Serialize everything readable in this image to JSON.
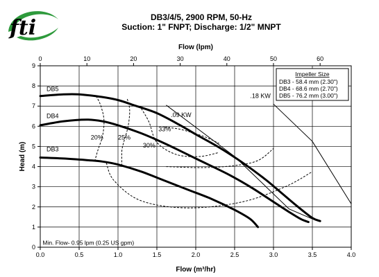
{
  "logo": {
    "text": "fti",
    "icon": "fti-globe-logo",
    "color": "#1e4fa0",
    "accent": "#2e9a3c"
  },
  "chart_data": {
    "type": "line",
    "title": "DB3/4/5, 2900 RPM, 50-Hz",
    "subtitle": "Suction: 1\" FNPT; Discharge: 1/2\" MNPT",
    "xlabel": "Flow (m³/hr)",
    "x2label": "Flow (lpm)",
    "ylabel": "Head (m)",
    "xlim": [
      0,
      4
    ],
    "ylim": [
      0,
      9
    ],
    "x2lim": [
      0,
      66.67
    ],
    "xticks": [
      "0.0",
      "0.5",
      "1.0",
      "1.5",
      "2.0",
      "2.5",
      "3.0",
      "3.5",
      "4.0"
    ],
    "x2ticks": [
      "0",
      "10",
      "20",
      "30",
      "40",
      "50",
      "60"
    ],
    "yticks": [
      "0",
      "1",
      "2",
      "3",
      "4",
      "5",
      "6",
      "7",
      "8",
      "9"
    ],
    "grid": true,
    "legend": {
      "title": "Impeller Size",
      "placement": "top-right",
      "entries": [
        "DB3 - 58.4 mm (2.30\")",
        "DB4 - 68.6 mm (2.70\")",
        "DB5 - 76.2 mm (3.00\")"
      ]
    },
    "series": [
      {
        "name": "DB5",
        "style": "solid-heavy",
        "points": [
          [
            0,
            7.5
          ],
          [
            0.3,
            7.58
          ],
          [
            0.5,
            7.58
          ],
          [
            0.8,
            7.45
          ],
          [
            1.0,
            7.3
          ],
          [
            1.2,
            7.05
          ],
          [
            1.5,
            6.65
          ],
          [
            1.8,
            6.05
          ],
          [
            2.0,
            5.6
          ],
          [
            2.3,
            4.95
          ],
          [
            2.6,
            4.2
          ],
          [
            2.9,
            3.35
          ],
          [
            3.1,
            2.7
          ],
          [
            3.3,
            2.05
          ],
          [
            3.5,
            1.45
          ],
          [
            3.6,
            1.3
          ]
        ]
      },
      {
        "name": "DB4",
        "style": "solid-heavy",
        "points": [
          [
            0,
            6.05
          ],
          [
            0.3,
            6.25
          ],
          [
            0.6,
            6.33
          ],
          [
            0.8,
            6.25
          ],
          [
            1.0,
            6.05
          ],
          [
            1.3,
            5.65
          ],
          [
            1.6,
            5.15
          ],
          [
            2.0,
            4.4
          ],
          [
            2.4,
            3.65
          ],
          [
            2.7,
            3.0
          ],
          [
            3.0,
            2.25
          ],
          [
            3.2,
            1.75
          ],
          [
            3.35,
            1.4
          ],
          [
            3.45,
            1.25
          ]
        ]
      },
      {
        "name": "DB3",
        "style": "solid-heavy",
        "points": [
          [
            0,
            4.45
          ],
          [
            0.3,
            4.4
          ],
          [
            0.6,
            4.32
          ],
          [
            0.8,
            4.25
          ],
          [
            1.0,
            4.1
          ],
          [
            1.3,
            3.75
          ],
          [
            1.6,
            3.3
          ],
          [
            1.9,
            2.85
          ],
          [
            2.2,
            2.4
          ],
          [
            2.5,
            1.85
          ],
          [
            2.7,
            1.4
          ],
          [
            2.8,
            1.0
          ]
        ]
      }
    ],
    "efficiency": [
      {
        "label": "20%",
        "label_at": [
          0.65,
          5.35
        ],
        "points": [
          [
            0.72,
            7.5
          ],
          [
            0.78,
            7.0
          ],
          [
            0.82,
            6.3
          ],
          [
            0.8,
            5.5
          ],
          [
            0.74,
            4.8
          ],
          [
            0.7,
            4.25
          ]
        ]
      },
      {
        "label": "25%",
        "label_at": [
          1.0,
          5.35
        ],
        "points": [
          [
            1.12,
            7.35
          ],
          [
            1.15,
            6.8
          ],
          [
            1.13,
            6.0
          ],
          [
            1.08,
            5.3
          ],
          [
            1.05,
            4.8
          ],
          [
            1.05,
            4.05
          ]
        ]
      },
      {
        "label": "30%",
        "label_at": [
          1.32,
          4.95
        ],
        "points": [
          [
            1.3,
            6.88
          ],
          [
            1.4,
            6.2
          ],
          [
            1.5,
            5.2
          ],
          [
            1.75,
            4.6
          ],
          [
            2.05,
            4.5
          ],
          [
            2.3,
            4.7
          ]
        ]
      },
      {
        "label": "33%",
        "label_at": [
          1.52,
          5.75
        ],
        "points": [
          [
            1.6,
            5.95
          ],
          [
            1.8,
            5.85
          ],
          [
            2.1,
            5.5
          ],
          [
            2.3,
            5.15
          ]
        ]
      },
      {
        "label": "",
        "label_at": null,
        "points": [
          [
            1.62,
            4.0
          ],
          [
            2.1,
            3.95
          ],
          [
            2.5,
            4.05
          ],
          [
            2.8,
            4.3
          ],
          [
            3.0,
            4.9
          ]
        ]
      },
      {
        "label": "",
        "label_at": null,
        "points": [
          [
            0.85,
            4.18
          ],
          [
            0.95,
            3.3
          ],
          [
            1.3,
            2.3
          ],
          [
            1.9,
            1.95
          ],
          [
            2.6,
            2.25
          ],
          [
            3.15,
            3.0
          ],
          [
            3.5,
            3.75
          ]
        ]
      }
    ],
    "power_lines": [
      {
        "label": ".09 KW",
        "label_at": [
          1.68,
          6.45
        ],
        "points": [
          [
            1.62,
            7.05
          ],
          [
            2.5,
            4.5
          ],
          [
            3.2,
            1.9
          ],
          [
            3.5,
            1.4
          ]
        ]
      },
      {
        "label": ".18 KW",
        "label_at": [
          2.7,
          7.4
        ],
        "points": [
          [
            3.0,
            7.1
          ],
          [
            3.5,
            5.25
          ],
          [
            4.0,
            2.15
          ]
        ]
      }
    ],
    "annotations": [
      {
        "text": "Min. Flow-  0.95 lpm (0.25 US gpm)",
        "at": [
          0.03,
          0.12
        ]
      }
    ]
  }
}
